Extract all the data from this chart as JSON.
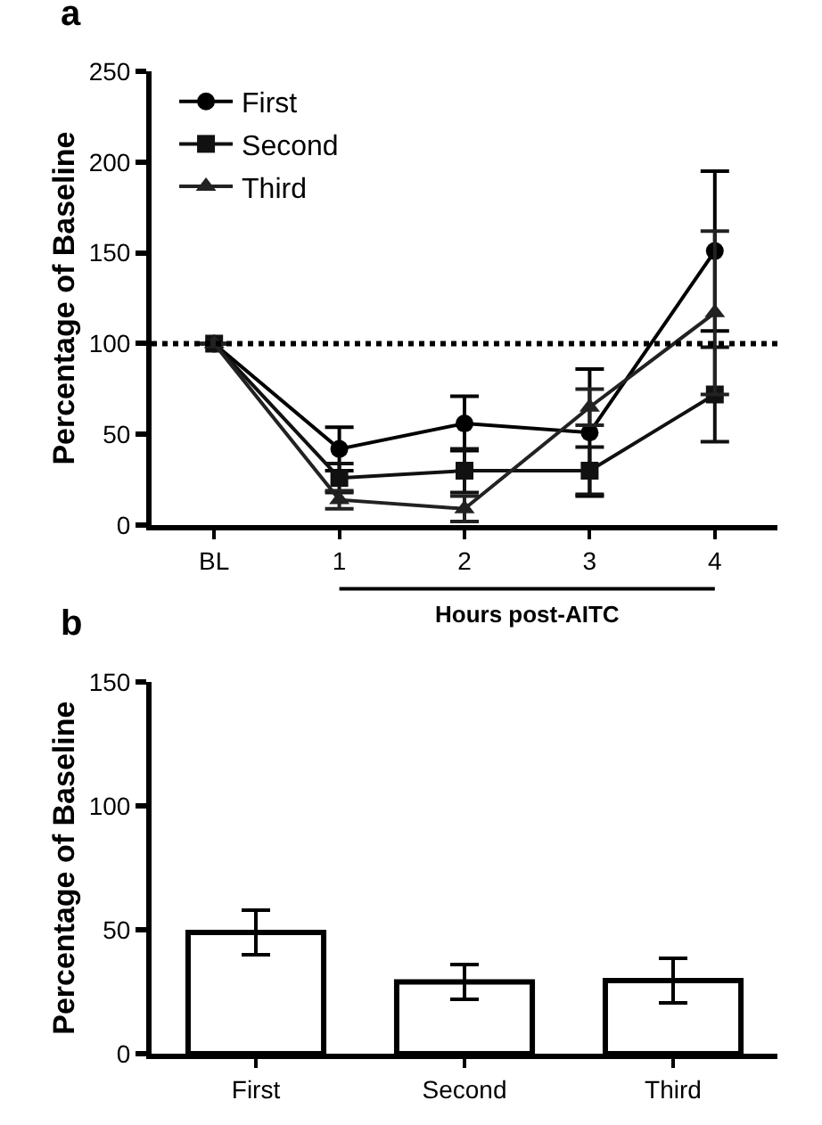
{
  "chart_data": [
    {
      "type": "line",
      "title": "a",
      "ylabel": "Percentage of Baseline",
      "categories": [
        "BL",
        "1",
        "2",
        "3",
        "4"
      ],
      "series": [
        {
          "name": "First",
          "color": "#000000",
          "marker": "circle",
          "values": [
            100,
            42,
            56,
            51,
            151
          ],
          "errors": [
            null,
            12,
            15,
            35,
            44
          ]
        },
        {
          "name": "Second",
          "color": "#111111",
          "marker": "square",
          "values": [
            100,
            26,
            30,
            30,
            72
          ],
          "errors": [
            null,
            8,
            12,
            13,
            26
          ]
        },
        {
          "name": "Third",
          "color": "#222222",
          "marker": "triangle",
          "values": [
            100,
            14,
            9,
            65,
            117
          ],
          "errors": [
            null,
            5,
            7,
            10,
            45
          ]
        }
      ],
      "ylim": [
        0,
        250
      ],
      "yticks": [
        0,
        50,
        100,
        150,
        200,
        250
      ],
      "ref_lines": [
        {
          "axis": "y",
          "value": 100,
          "color": "#000000",
          "line_style": "dotted"
        }
      ],
      "annotations": [
        "Hours post-AITC"
      ],
      "legend": "top left",
      "line_style": "solid"
    },
    {
      "type": "bar",
      "title": "b",
      "ylabel": "Percentage of Baseline",
      "categories": [
        "First",
        "Second",
        "Third"
      ],
      "values": [
        49,
        29,
        29.5
      ],
      "errors": [
        9,
        7,
        9
      ],
      "color": "#ffffff",
      "ylim": [
        0,
        150
      ],
      "yticks": [
        0,
        50,
        100,
        150
      ],
      "legend": false
    }
  ]
}
